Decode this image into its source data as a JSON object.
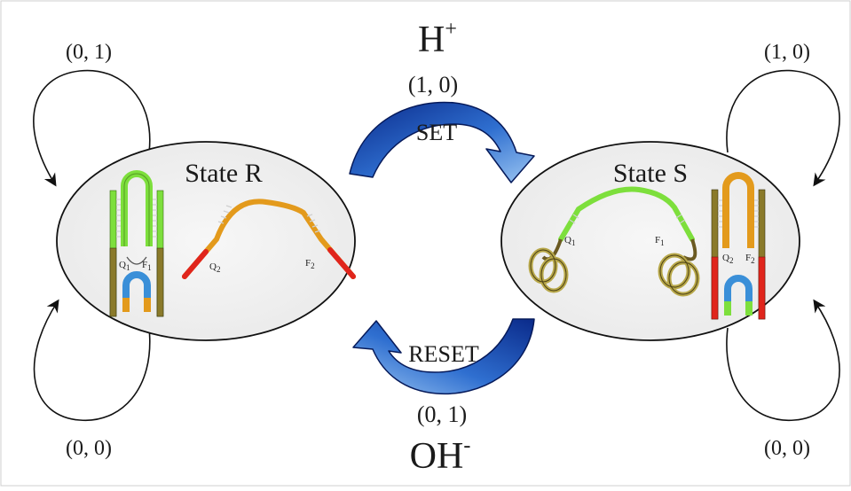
{
  "diagram": {
    "state_r": {
      "title": "State R",
      "label_q1": "Q",
      "label_q1_sub": "1",
      "label_f1": "F",
      "label_f1_sub": "1",
      "label_q2": "Q",
      "label_q2_sub": "2",
      "label_f2": "F",
      "label_f2_sub": "2"
    },
    "state_s": {
      "title": "State S",
      "label_q1": "Q",
      "label_q1_sub": "1",
      "label_f1": "F",
      "label_f1_sub": "1",
      "label_q2": "Q",
      "label_q2_sub": "2",
      "label_f2": "F",
      "label_f2_sub": "2"
    },
    "set_transition": {
      "stimulus": "H",
      "stimulus_sup": "+",
      "input": "(1, 0)",
      "label": "SET"
    },
    "reset_transition": {
      "stimulus": "OH",
      "stimulus_sup": "-",
      "input": "(0, 1)",
      "label": "RESET"
    },
    "self_loops": {
      "r_top": "(0, 1)",
      "r_bottom": "(0, 0)",
      "s_top": "(1, 0)",
      "s_bottom": "(0, 0)"
    },
    "colors": {
      "arrow_blue_dark": "#0a2a8a",
      "arrow_blue_light": "#3f7fd8",
      "green": "#7ddf3c",
      "orange": "#e39a1c",
      "red": "#e0251c",
      "olive": "#6b5a22",
      "blue": "#3a8fd8",
      "ellipse_fill": "#f2f2f2"
    }
  }
}
